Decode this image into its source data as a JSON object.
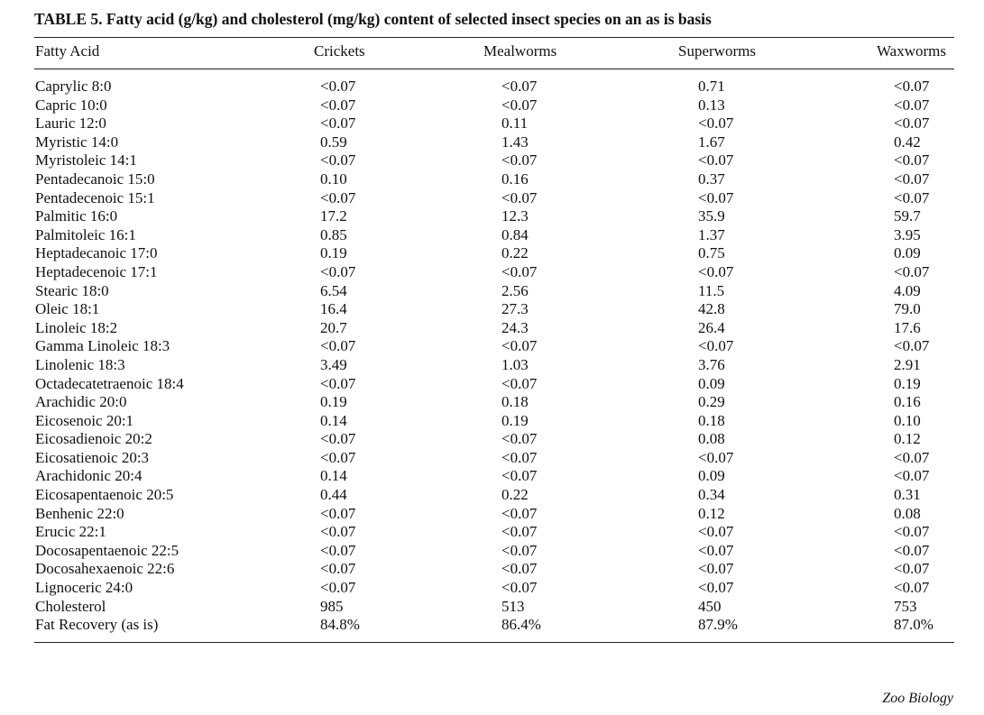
{
  "title": "TABLE 5. Fatty acid (g/kg) and cholesterol (mg/kg) content of selected insect species on an as is basis",
  "headers": [
    "Fatty Acid",
    "Crickets",
    "Mealworms",
    "Superworms",
    "Waxworms"
  ],
  "rows": [
    {
      "name": "Caprylic 8:0",
      "crickets": "<0.07",
      "mealworms": "<0.07",
      "superworms": "0.71",
      "waxworms": "<0.07"
    },
    {
      "name": "Capric 10:0",
      "crickets": "<0.07",
      "mealworms": "<0.07",
      "superworms": "0.13",
      "waxworms": "<0.07"
    },
    {
      "name": "Lauric 12:0",
      "crickets": "<0.07",
      "mealworms": "0.11",
      "superworms": "<0.07",
      "waxworms": "<0.07"
    },
    {
      "name": "Myristic 14:0",
      "crickets": "0.59",
      "mealworms": "1.43",
      "superworms": "1.67",
      "waxworms": "0.42"
    },
    {
      "name": "Myristoleic 14:1",
      "crickets": "<0.07",
      "mealworms": "<0.07",
      "superworms": "<0.07",
      "waxworms": "<0.07"
    },
    {
      "name": "Pentadecanoic 15:0",
      "crickets": "0.10",
      "mealworms": "0.16",
      "superworms": "0.37",
      "waxworms": "<0.07"
    },
    {
      "name": "Pentadecenoic 15:1",
      "crickets": "<0.07",
      "mealworms": "<0.07",
      "superworms": "<0.07",
      "waxworms": "<0.07"
    },
    {
      "name": "Palmitic 16:0",
      "crickets": "17.2",
      "mealworms": "12.3",
      "superworms": "35.9",
      "waxworms": "59.7"
    },
    {
      "name": "Palmitoleic 16:1",
      "crickets": "0.85",
      "mealworms": "0.84",
      "superworms": "1.37",
      "waxworms": "3.95"
    },
    {
      "name": "Heptadecanoic 17:0",
      "crickets": "0.19",
      "mealworms": "0.22",
      "superworms": "0.75",
      "waxworms": "0.09"
    },
    {
      "name": "Heptadecenoic 17:1",
      "crickets": "<0.07",
      "mealworms": "<0.07",
      "superworms": "<0.07",
      "waxworms": "<0.07"
    },
    {
      "name": "Stearic 18:0",
      "crickets": "6.54",
      "mealworms": "2.56",
      "superworms": "11.5",
      "waxworms": "4.09"
    },
    {
      "name": "Oleic 18:1",
      "crickets": "16.4",
      "mealworms": "27.3",
      "superworms": "42.8",
      "waxworms": "79.0"
    },
    {
      "name": "Linoleic 18:2",
      "crickets": "20.7",
      "mealworms": "24.3",
      "superworms": "26.4",
      "waxworms": "17.6"
    },
    {
      "name": "Gamma Linoleic 18:3",
      "crickets": "<0.07",
      "mealworms": "<0.07",
      "superworms": "<0.07",
      "waxworms": "<0.07"
    },
    {
      "name": "Linolenic 18:3",
      "crickets": "3.49",
      "mealworms": "1.03",
      "superworms": "3.76",
      "waxworms": "2.91"
    },
    {
      "name": "Octadecatetraenoic 18:4",
      "crickets": "<0.07",
      "mealworms": "<0.07",
      "superworms": "0.09",
      "waxworms": "0.19"
    },
    {
      "name": "Arachidic 20:0",
      "crickets": "0.19",
      "mealworms": "0.18",
      "superworms": "0.29",
      "waxworms": "0.16"
    },
    {
      "name": "Eicosenoic 20:1",
      "crickets": "0.14",
      "mealworms": "0.19",
      "superworms": "0.18",
      "waxworms": "0.10"
    },
    {
      "name": "Eicosadienoic 20:2",
      "crickets": "<0.07",
      "mealworms": "<0.07",
      "superworms": "0.08",
      "waxworms": "0.12"
    },
    {
      "name": "Eicosatienoic 20:3",
      "crickets": "<0.07",
      "mealworms": "<0.07",
      "superworms": "<0.07",
      "waxworms": "<0.07"
    },
    {
      "name": "Arachidonic 20:4",
      "crickets": "0.14",
      "mealworms": "<0.07",
      "superworms": "0.09",
      "waxworms": "<0.07"
    },
    {
      "name": "Eicosapentaenoic 20:5",
      "crickets": "0.44",
      "mealworms": "0.22",
      "superworms": "0.34",
      "waxworms": "0.31"
    },
    {
      "name": "Benhenic 22:0",
      "crickets": "<0.07",
      "mealworms": "<0.07",
      "superworms": "0.12",
      "waxworms": "0.08"
    },
    {
      "name": "Erucic 22:1",
      "crickets": "<0.07",
      "mealworms": "<0.07",
      "superworms": "<0.07",
      "waxworms": "<0.07"
    },
    {
      "name": "Docosapentaenoic 22:5",
      "crickets": "<0.07",
      "mealworms": "<0.07",
      "superworms": "<0.07",
      "waxworms": "<0.07"
    },
    {
      "name": "Docosahexaenoic 22:6",
      "crickets": "<0.07",
      "mealworms": "<0.07",
      "superworms": "<0.07",
      "waxworms": "<0.07"
    },
    {
      "name": "Lignoceric 24:0",
      "crickets": "<0.07",
      "mealworms": "<0.07",
      "superworms": "<0.07",
      "waxworms": "<0.07"
    },
    {
      "name": "Cholesterol",
      "crickets": "985",
      "mealworms": "513",
      "superworms": "450",
      "waxworms": "753"
    },
    {
      "name": "Fat Recovery (as is)",
      "crickets": "84.8%",
      "mealworms": "86.4%",
      "superworms": "87.9%",
      "waxworms": "87.0%"
    }
  ],
  "journal": "Zoo Biology"
}
